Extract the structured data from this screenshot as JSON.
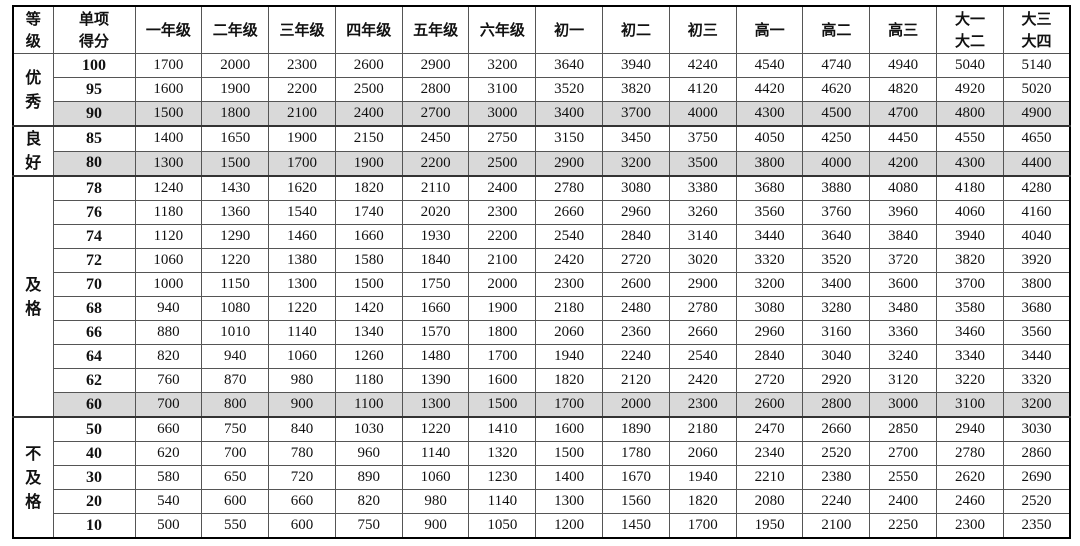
{
  "header": {
    "grade": [
      "等",
      "级"
    ],
    "score": [
      "单项",
      "得分"
    ],
    "columns": [
      "一年级",
      "二年级",
      "三年级",
      "四年级",
      "五年级",
      "六年级",
      "初一",
      "初二",
      "初三",
      "高一",
      "高二",
      "高三",
      [
        "大一",
        "大二"
      ],
      [
        "大三",
        "大四"
      ]
    ]
  },
  "shade_color": "#d9d9d9",
  "bands": [
    {
      "label": [
        "优",
        "秀"
      ],
      "rows": [
        {
          "score": "100",
          "values": [
            "1700",
            "2000",
            "2300",
            "2600",
            "2900",
            "3200",
            "3640",
            "3940",
            "4240",
            "4540",
            "4740",
            "4940",
            "5040",
            "5140"
          ]
        },
        {
          "score": "95",
          "values": [
            "1600",
            "1900",
            "2200",
            "2500",
            "2800",
            "3100",
            "3520",
            "3820",
            "4120",
            "4420",
            "4620",
            "4820",
            "4920",
            "5020"
          ]
        },
        {
          "score": "90",
          "shaded": true,
          "values": [
            "1500",
            "1800",
            "2100",
            "2400",
            "2700",
            "3000",
            "3400",
            "3700",
            "4000",
            "4300",
            "4500",
            "4700",
            "4800",
            "4900"
          ]
        }
      ]
    },
    {
      "label": [
        "良",
        "好"
      ],
      "rows": [
        {
          "score": "85",
          "values": [
            "1400",
            "1650",
            "1900",
            "2150",
            "2450",
            "2750",
            "3150",
            "3450",
            "3750",
            "4050",
            "4250",
            "4450",
            "4550",
            "4650"
          ]
        },
        {
          "score": "80",
          "shaded": true,
          "values": [
            "1300",
            "1500",
            "1700",
            "1900",
            "2200",
            "2500",
            "2900",
            "3200",
            "3500",
            "3800",
            "4000",
            "4200",
            "4300",
            "4400"
          ]
        }
      ]
    },
    {
      "label": [
        "及",
        "格"
      ],
      "rows": [
        {
          "score": "78",
          "values": [
            "1240",
            "1430",
            "1620",
            "1820",
            "2110",
            "2400",
            "2780",
            "3080",
            "3380",
            "3680",
            "3880",
            "4080",
            "4180",
            "4280"
          ]
        },
        {
          "score": "76",
          "values": [
            "1180",
            "1360",
            "1540",
            "1740",
            "2020",
            "2300",
            "2660",
            "2960",
            "3260",
            "3560",
            "3760",
            "3960",
            "4060",
            "4160"
          ]
        },
        {
          "score": "74",
          "values": [
            "1120",
            "1290",
            "1460",
            "1660",
            "1930",
            "2200",
            "2540",
            "2840",
            "3140",
            "3440",
            "3640",
            "3840",
            "3940",
            "4040"
          ]
        },
        {
          "score": "72",
          "values": [
            "1060",
            "1220",
            "1380",
            "1580",
            "1840",
            "2100",
            "2420",
            "2720",
            "3020",
            "3320",
            "3520",
            "3720",
            "3820",
            "3920"
          ]
        },
        {
          "score": "70",
          "values": [
            "1000",
            "1150",
            "1300",
            "1500",
            "1750",
            "2000",
            "2300",
            "2600",
            "2900",
            "3200",
            "3400",
            "3600",
            "3700",
            "3800"
          ]
        },
        {
          "score": "68",
          "values": [
            "940",
            "1080",
            "1220",
            "1420",
            "1660",
            "1900",
            "2180",
            "2480",
            "2780",
            "3080",
            "3280",
            "3480",
            "3580",
            "3680"
          ]
        },
        {
          "score": "66",
          "values": [
            "880",
            "1010",
            "1140",
            "1340",
            "1570",
            "1800",
            "2060",
            "2360",
            "2660",
            "2960",
            "3160",
            "3360",
            "3460",
            "3560"
          ]
        },
        {
          "score": "64",
          "values": [
            "820",
            "940",
            "1060",
            "1260",
            "1480",
            "1700",
            "1940",
            "2240",
            "2540",
            "2840",
            "3040",
            "3240",
            "3340",
            "3440"
          ]
        },
        {
          "score": "62",
          "values": [
            "760",
            "870",
            "980",
            "1180",
            "1390",
            "1600",
            "1820",
            "2120",
            "2420",
            "2720",
            "2920",
            "3120",
            "3220",
            "3320"
          ]
        },
        {
          "score": "60",
          "shaded": true,
          "values": [
            "700",
            "800",
            "900",
            "1100",
            "1300",
            "1500",
            "1700",
            "2000",
            "2300",
            "2600",
            "2800",
            "3000",
            "3100",
            "3200"
          ]
        }
      ]
    },
    {
      "label": [
        "不",
        "及",
        "格"
      ],
      "rows": [
        {
          "score": "50",
          "values": [
            "660",
            "750",
            "840",
            "1030",
            "1220",
            "1410",
            "1600",
            "1890",
            "2180",
            "2470",
            "2660",
            "2850",
            "2940",
            "3030"
          ]
        },
        {
          "score": "40",
          "values": [
            "620",
            "700",
            "780",
            "960",
            "1140",
            "1320",
            "1500",
            "1780",
            "2060",
            "2340",
            "2520",
            "2700",
            "2780",
            "2860"
          ]
        },
        {
          "score": "30",
          "values": [
            "580",
            "650",
            "720",
            "890",
            "1060",
            "1230",
            "1400",
            "1670",
            "1940",
            "2210",
            "2380",
            "2550",
            "2620",
            "2690"
          ]
        },
        {
          "score": "20",
          "values": [
            "540",
            "600",
            "660",
            "820",
            "980",
            "1140",
            "1300",
            "1560",
            "1820",
            "2080",
            "2240",
            "2400",
            "2460",
            "2520"
          ]
        },
        {
          "score": "10",
          "values": [
            "500",
            "550",
            "600",
            "750",
            "900",
            "1050",
            "1200",
            "1450",
            "1700",
            "1950",
            "2100",
            "2250",
            "2300",
            "2350"
          ]
        }
      ]
    }
  ]
}
